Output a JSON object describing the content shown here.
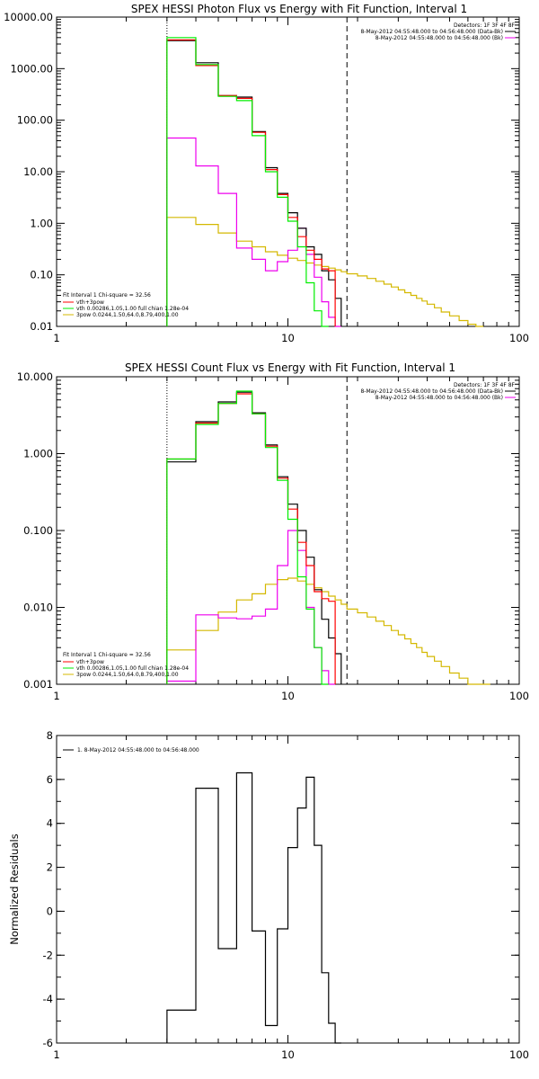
{
  "colors": {
    "black": "#000000",
    "red": "#ff0000",
    "green": "#00ee00",
    "magenta": "#ee00ee",
    "yellow": "#d4b800"
  },
  "chart_data": [
    {
      "type": "line",
      "step": true,
      "title": "SPEX HESSI Photon Flux vs Energy with Fit Function, Interval 1",
      "x_log": true,
      "y_log": true,
      "xlim": [
        1,
        100
      ],
      "ylim": [
        0.01,
        10000
      ],
      "x_ticks": [
        "1",
        "10",
        "100"
      ],
      "y_ticks": [
        "10000.00",
        "1000.00",
        "100.00",
        "10.00",
        "1.00",
        "0.10",
        "0.01"
      ],
      "threshold_dotted_x": 3,
      "threshold_dashed_x": 18,
      "info_top": [
        "Detectors: 1F 3F 4F 8F",
        "8-May-2012 04:55:48.000 to 04:56:48.000 (Data-Bk)",
        "8-May-2012 04:55:48.000 to 04:56:48.000 (Bk)"
      ],
      "info_bottom": [
        "Fit Interval 1    Chi-square = 32.56",
        "vth+3pow",
        "vth 0.00286,1.05,1.00  full chian 1.28e-04",
        "3pow 0.0244,1.50,64.0,8.79,400,1.00"
      ],
      "edges": [
        3,
        4,
        5,
        6,
        7,
        8,
        9,
        10,
        11,
        12,
        13,
        14,
        15,
        16,
        17,
        18,
        20,
        22,
        24,
        26,
        28,
        30,
        32,
        34,
        36,
        38,
        40,
        43,
        46,
        50,
        55,
        60,
        65,
        70
      ],
      "series": [
        {
          "color": "black",
          "values": [
            3500,
            1300,
            300,
            280,
            60,
            12,
            3.8,
            1.6,
            0.8,
            0.35,
            0.25,
            0.12,
            0.08,
            0.035
          ]
        },
        {
          "color": "red",
          "values": [
            3600,
            1150,
            300,
            265,
            58,
            11,
            3.6,
            1.3,
            0.55,
            0.3,
            0.2,
            0.13,
            0.12
          ]
        },
        {
          "color": "green",
          "values": [
            4000,
            1200,
            290,
            240,
            50,
            10,
            3.2,
            1.1,
            0.35,
            0.07,
            0.02,
            0.008
          ]
        },
        {
          "color": "magenta",
          "values": [
            45,
            13,
            3.8,
            0.33,
            0.2,
            0.12,
            0.18,
            0.3,
            0.8,
            0.25,
            0.09,
            0.03,
            0.015,
            0.008
          ]
        },
        {
          "color": "yellow",
          "values": [
            1.3,
            0.95,
            0.65,
            0.45,
            0.35,
            0.28,
            0.24,
            0.21,
            0.19,
            0.17,
            0.155,
            0.145,
            0.135,
            0.125,
            0.115,
            0.105,
            0.095,
            0.085,
            0.075,
            0.066,
            0.058,
            0.051,
            0.045,
            0.04,
            0.035,
            0.031,
            0.027,
            0.023,
            0.019,
            0.016,
            0.013,
            0.011,
            0.008
          ]
        }
      ]
    },
    {
      "type": "line",
      "step": true,
      "title": "SPEX HESSI Count Flux vs Energy with Fit Function, Interval 1",
      "x_log": true,
      "y_log": true,
      "xlim": [
        1,
        100
      ],
      "ylim": [
        0.001,
        10
      ],
      "x_ticks": [
        "1",
        "10",
        "100"
      ],
      "y_ticks": [
        "10.000",
        "1.000",
        "0.100",
        "0.010",
        "0.001"
      ],
      "threshold_dotted_x": 3,
      "threshold_dashed_x": 18,
      "info_top": [
        "Detectors: 1F 3F 4F 8F",
        "8-May-2012 04:55:48.000 to 04:56:48.000 (Data-Bk)",
        "8-May-2012 04:55:48.000 to 04:56:48.000 (Bk)"
      ],
      "info_bottom": [
        "Fit Interval 1    Chi-square = 32.56",
        "vth+3pow",
        "vth 0.00286,1.05,1.00  full chian 1.28e-04",
        "3pow 0.0244,1.50,64.0,8.79,400,1.00"
      ],
      "edges": [
        3,
        4,
        5,
        6,
        7,
        8,
        9,
        10,
        11,
        12,
        13,
        14,
        15,
        16,
        17,
        18,
        20,
        22,
        24,
        26,
        28,
        30,
        32,
        34,
        36,
        38,
        40,
        43,
        46,
        50,
        55,
        60,
        65,
        70,
        75
      ],
      "series": [
        {
          "color": "black",
          "values": [
            0.78,
            2.6,
            4.7,
            6.3,
            3.4,
            1.3,
            0.5,
            0.22,
            0.1,
            0.045,
            0.017,
            0.007,
            0.004,
            0.0025
          ]
        },
        {
          "color": "red",
          "values": [
            0.85,
            2.5,
            4.5,
            6.0,
            3.3,
            1.25,
            0.48,
            0.19,
            0.07,
            0.035,
            0.016,
            0.013,
            0.012
          ]
        },
        {
          "color": "green",
          "values": [
            0.85,
            2.4,
            4.5,
            6.5,
            3.3,
            1.2,
            0.45,
            0.14,
            0.025,
            0.0095,
            0.003,
            0.0008
          ]
        },
        {
          "color": "magenta",
          "values": [
            0.0011,
            0.008,
            0.0073,
            0.0071,
            0.0077,
            0.0095,
            0.035,
            0.1,
            0.055,
            0.01,
            0.003,
            0.0015,
            0.0008
          ]
        },
        {
          "color": "yellow",
          "values": [
            0.0028,
            0.005,
            0.0087,
            0.0125,
            0.015,
            0.02,
            0.023,
            0.024,
            0.022,
            0.02,
            0.018,
            0.016,
            0.014,
            0.0125,
            0.011,
            0.0095,
            0.0085,
            0.0075,
            0.0066,
            0.0058,
            0.005,
            0.0044,
            0.0039,
            0.0034,
            0.003,
            0.0026,
            0.0023,
            0.002,
            0.0017,
            0.0014,
            0.0012,
            0.001,
            0.0009,
            0.0008
          ]
        }
      ]
    },
    {
      "type": "line",
      "step": true,
      "x_log": true,
      "y_log": false,
      "xlim": [
        1,
        100
      ],
      "ylim": [
        -6,
        8
      ],
      "x_ticks": [
        "1",
        "10",
        "100"
      ],
      "y_ticks": [
        "8",
        "6",
        "4",
        "2",
        "0",
        "-2",
        "-4",
        "-6"
      ],
      "ylabel": "Normalized Residuals",
      "legend": "1. 8-May-2012 04:55:48.000 to 04:56:48.000",
      "edges": [
        3,
        4,
        5,
        6,
        7,
        8,
        9,
        10,
        11,
        12,
        13,
        14,
        15,
        16,
        17,
        18
      ],
      "series": [
        {
          "color": "black",
          "values": [
            -4.5,
            5.6,
            -1.7,
            6.3,
            -0.9,
            -5.2,
            -0.8,
            2.9,
            4.7,
            6.1,
            3.0,
            -2.8,
            -5.1,
            -6.2
          ]
        }
      ]
    }
  ]
}
